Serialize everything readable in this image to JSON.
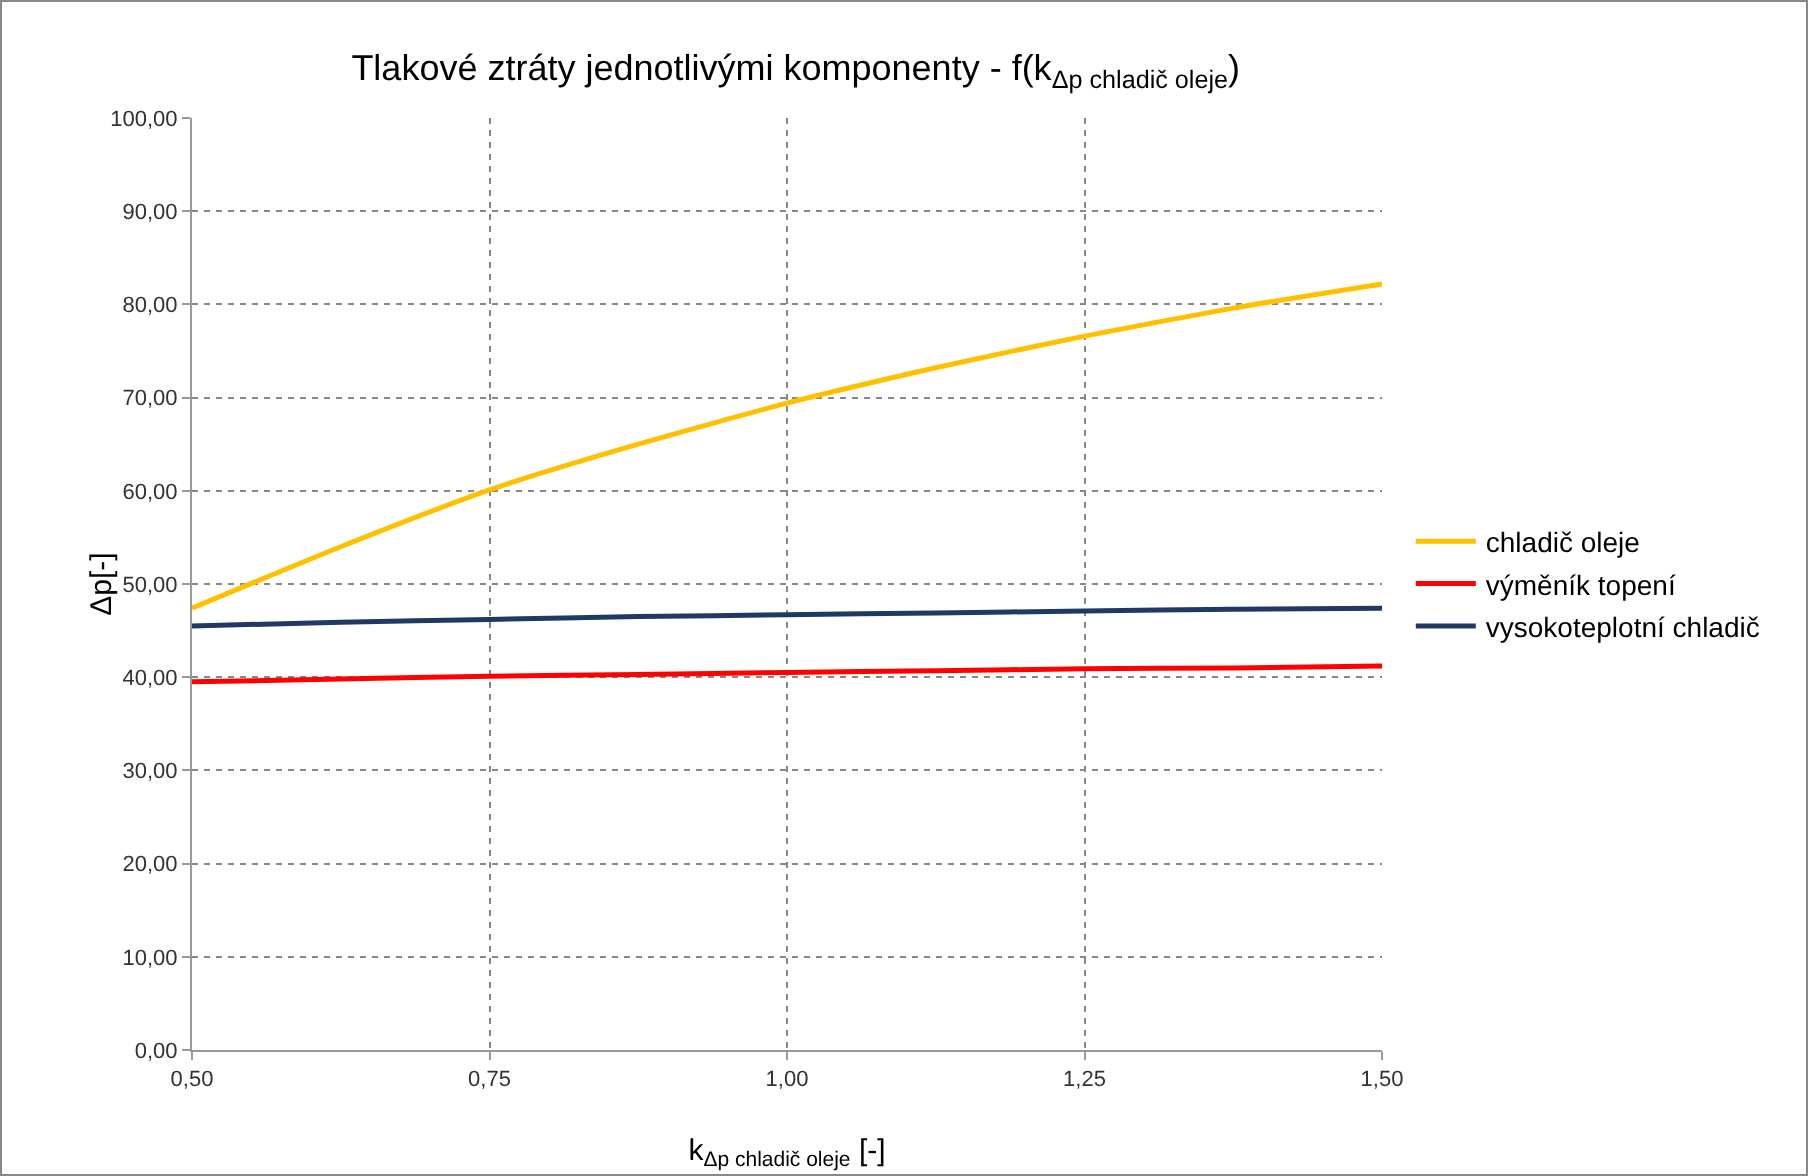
{
  "chart_data": {
    "type": "line",
    "title": "Tlakové ztráty jednotlivými komponenty - f(k$_{Δp chladič oleje}$)",
    "xlabel": "k$_{Δp chladič oleje}$ [-]",
    "ylabel": "Δp[-]",
    "x": [
      0.5,
      0.625,
      0.75,
      0.875,
      1.0,
      1.125,
      1.25,
      1.375,
      1.5
    ],
    "series": [
      {
        "name": "chladič oleje",
        "color": "#ffc000",
        "values": [
          47.4,
          54.0,
          60.1,
          65.0,
          69.4,
          73.2,
          76.6,
          79.6,
          82.2
        ]
      },
      {
        "name": "výměník topení",
        "color": "#ff0000",
        "values": [
          39.5,
          39.8,
          40.1,
          40.3,
          40.5,
          40.7,
          40.9,
          41.0,
          41.2
        ]
      },
      {
        "name": "vysokoteplotní chladič",
        "color": "#1f3864",
        "values": [
          45.5,
          45.9,
          46.2,
          46.5,
          46.7,
          46.9,
          47.1,
          47.3,
          47.4
        ]
      }
    ],
    "xlim": [
      0.5,
      1.5
    ],
    "xticks": [
      {
        "value": 0.5,
        "label": "0,50"
      },
      {
        "value": 0.75,
        "label": "0,75"
      },
      {
        "value": 1.0,
        "label": "1,00"
      },
      {
        "value": 1.25,
        "label": "1,25"
      },
      {
        "value": 1.5,
        "label": "1,50"
      }
    ],
    "ylim": [
      0,
      100
    ],
    "yticks": [
      {
        "value": 0,
        "label": "0,00"
      },
      {
        "value": 10,
        "label": "10,00"
      },
      {
        "value": 20,
        "label": "20,00"
      },
      {
        "value": 30,
        "label": "30,00"
      },
      {
        "value": 40,
        "label": "40,00"
      },
      {
        "value": 50,
        "label": "50,00"
      },
      {
        "value": 60,
        "label": "60,00"
      },
      {
        "value": 70,
        "label": "70,00"
      },
      {
        "value": 80,
        "label": "80,00"
      },
      {
        "value": 90,
        "label": "90,00"
      },
      {
        "value": 100,
        "label": "100,00"
      }
    ],
    "grid": true,
    "legend": "right",
    "marker": "none",
    "line_style": "solid"
  }
}
